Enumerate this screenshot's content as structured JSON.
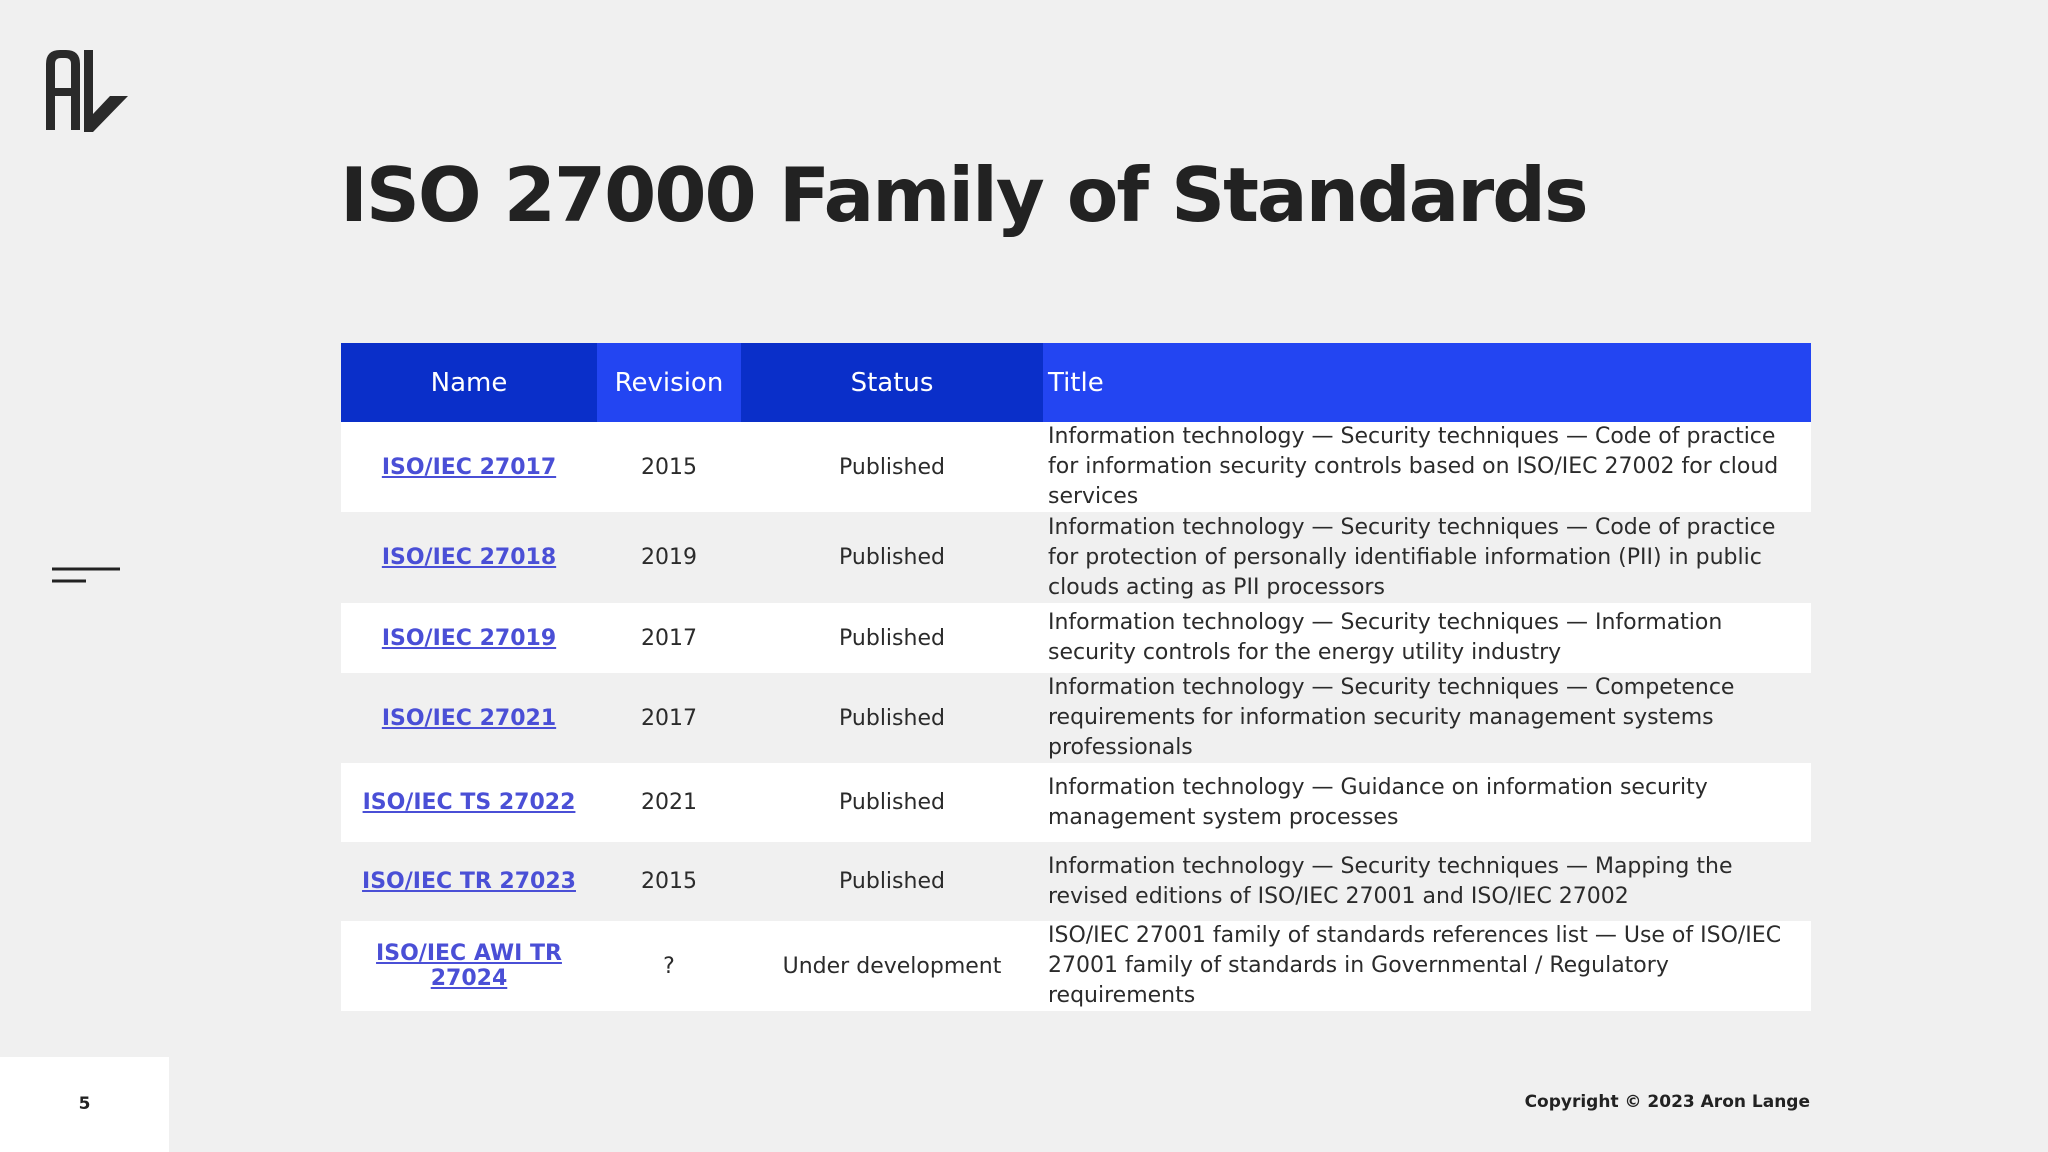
{
  "slide": {
    "title": "ISO 27000 Family of Standards",
    "page_number": "5",
    "copyright": "Copyright © 2023 Aron Lange",
    "logo_text": "AL"
  },
  "table": {
    "headers": {
      "name": "Name",
      "revision": "Revision",
      "status": "Status",
      "title": "Title"
    },
    "rows": [
      {
        "name": "ISO/IEC 27017",
        "revision": "2015",
        "status": "Published",
        "title": "Information technology — Security techniques — Code of practice for information security controls based on ISO/IEC 27002 for cloud services"
      },
      {
        "name": "ISO/IEC 27018",
        "revision": "2019",
        "status": "Published",
        "title": "Information technology — Security techniques — Code of practice for protection of personally identifiable information (PII) in public clouds acting as PII processors"
      },
      {
        "name": "ISO/IEC 27019",
        "revision": "2017",
        "status": "Published",
        "title": "Information technology — Security techniques — Information security controls for the energy utility industry"
      },
      {
        "name": "ISO/IEC 27021",
        "revision": "2017",
        "status": "Published",
        "title": "Information technology — Security techniques — Competence requirements for information security management systems professionals"
      },
      {
        "name": "ISO/IEC TS 27022",
        "revision": "2021",
        "status": "Published",
        "title": "Information technology — Guidance on information security management system processes"
      },
      {
        "name": "ISO/IEC TR 27023",
        "revision": "2015",
        "status": "Published",
        "title": "Information technology — Security techniques — Mapping the revised editions of ISO/IEC 27001 and ISO/IEC 27002"
      },
      {
        "name": "ISO/IEC AWI TR 27024",
        "revision": "?",
        "status": "Under development",
        "title": "ISO/IEC 27001 family of standards references list — Use of ISO/IEC 27001 family of standards in Governmental / Regulatory requirements"
      }
    ]
  },
  "colors": {
    "header_dark": "#0a2fc9",
    "header_bright": "#2345f2",
    "link": "#4a4fd6",
    "background": "#f0f0f0"
  },
  "icons": {
    "logo": "al-monogram-logo",
    "side_decoration": "menu-lines-icon"
  }
}
